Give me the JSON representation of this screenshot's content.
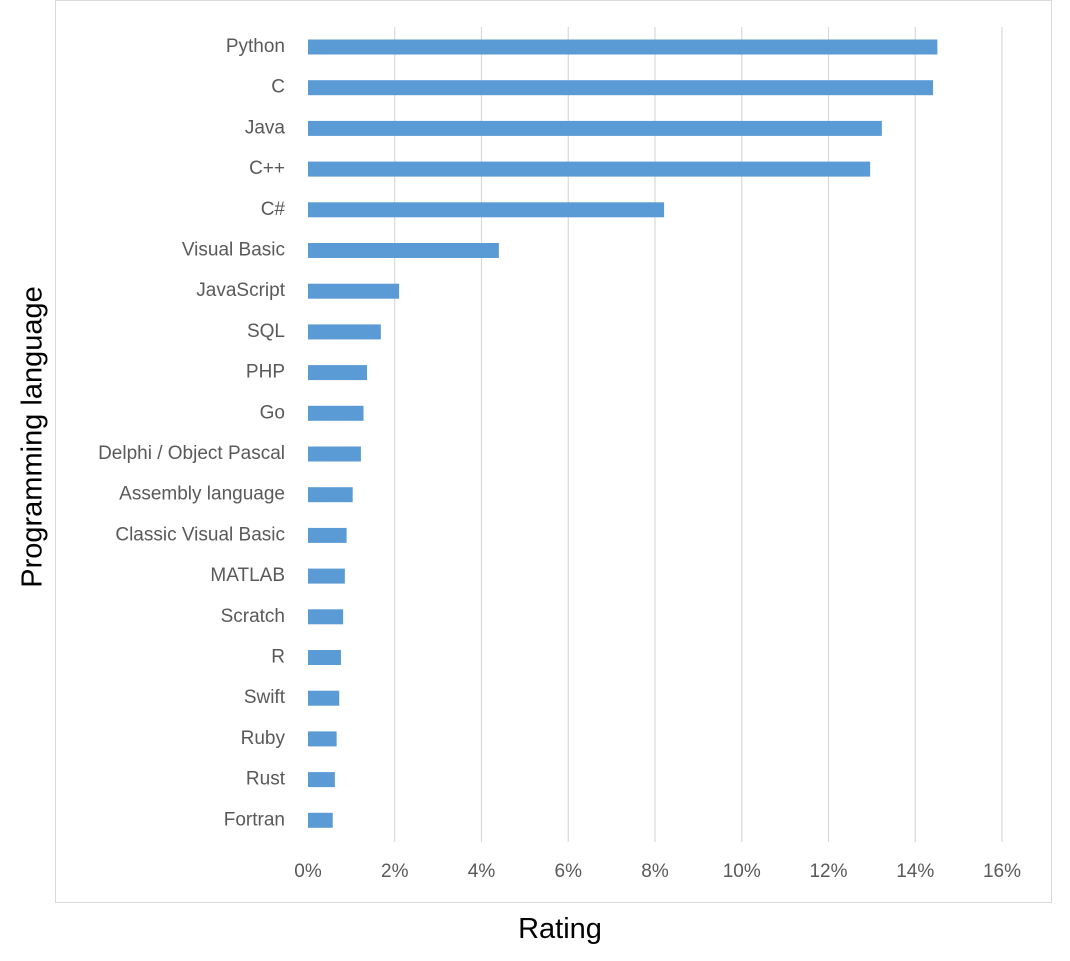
{
  "chart_data": {
    "type": "bar",
    "orientation": "horizontal",
    "title": "",
    "xlabel": "Rating",
    "ylabel": "Programming language",
    "categories": [
      "Python",
      "C",
      "Java",
      "C++",
      "C#",
      "Visual Basic",
      "JavaScript",
      "SQL",
      "PHP",
      "Go",
      "Delphi / Object Pascal",
      "Assembly language",
      "Classic Visual Basic",
      "MATLAB",
      "Scratch",
      "R",
      "Swift",
      "Ruby",
      "Rust",
      "Fortran"
    ],
    "values": [
      14.51,
      14.41,
      13.23,
      12.96,
      8.21,
      4.4,
      2.1,
      1.68,
      1.36,
      1.28,
      1.22,
      1.03,
      0.89,
      0.85,
      0.81,
      0.76,
      0.72,
      0.66,
      0.62,
      0.57
    ],
    "xlim": [
      0,
      16
    ],
    "x_ticks": [
      0,
      2,
      4,
      6,
      8,
      10,
      12,
      14,
      16
    ],
    "x_tick_labels": [
      "0%",
      "2%",
      "4%",
      "6%",
      "8%",
      "10%",
      "12%",
      "14%",
      "16%"
    ],
    "grid": "vertical",
    "legend": "none",
    "bar_color": "#5b9bd5",
    "grid_color": "#d9d9d9",
    "label_color": "#595959"
  }
}
